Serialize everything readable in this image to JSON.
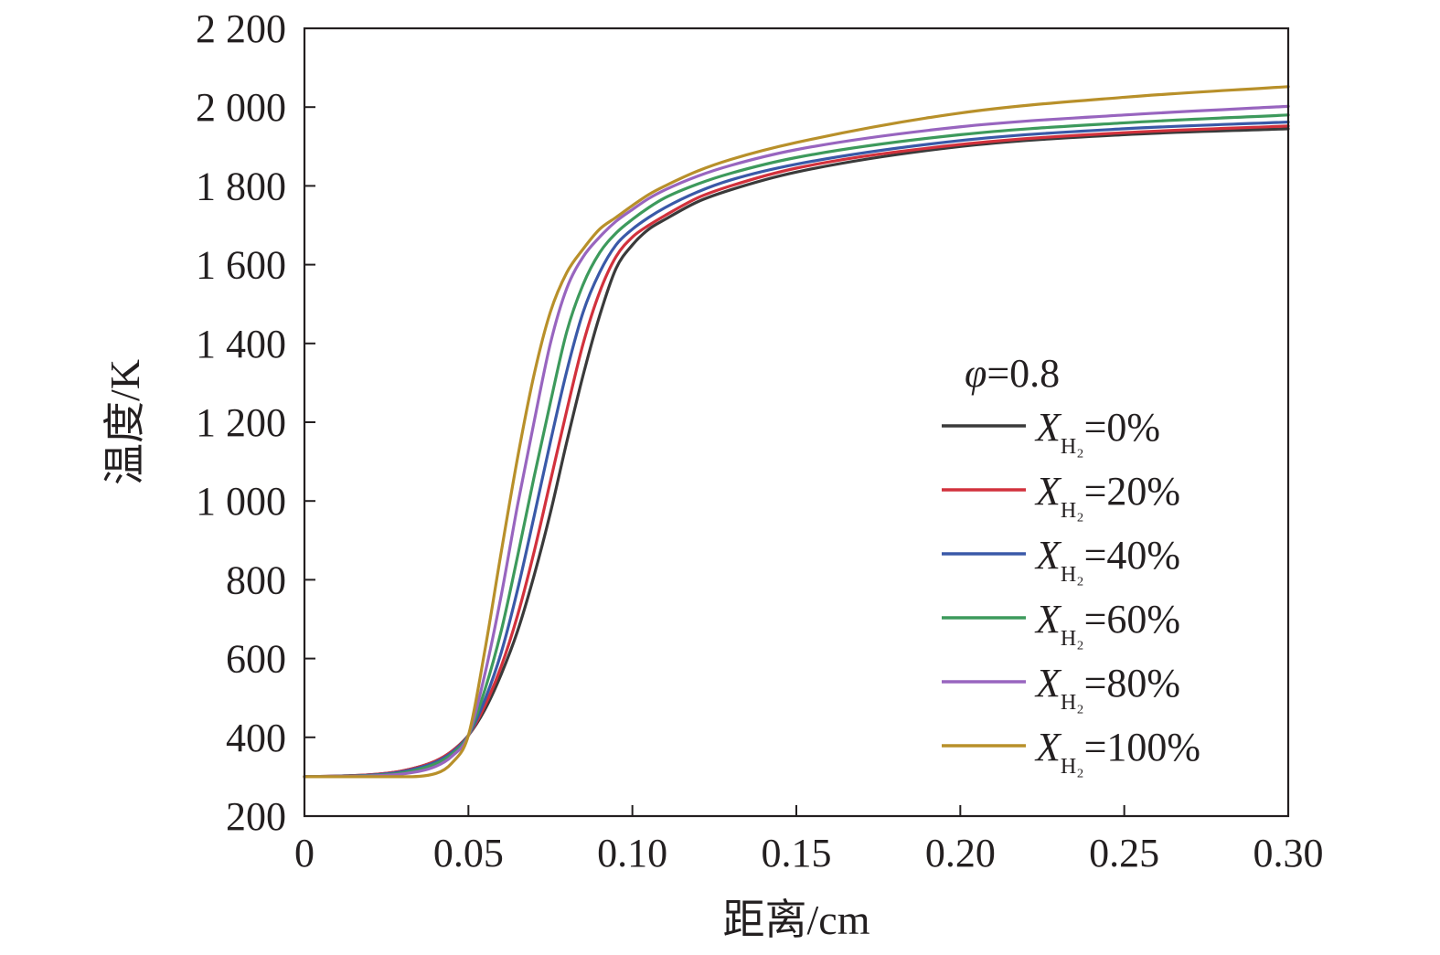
{
  "chart_data": {
    "type": "line",
    "xlabel": "距离/cm",
    "ylabel": "温度/K",
    "xlim": [
      0,
      0.3
    ],
    "ylim": [
      200,
      2200
    ],
    "x_ticks": [
      0,
      0.05,
      0.1,
      0.15,
      0.2,
      0.25,
      0.3
    ],
    "x_tick_labels": [
      "0",
      "0.05",
      "0.10",
      "0.15",
      "0.20",
      "0.25",
      "0.30"
    ],
    "y_ticks": [
      200,
      400,
      600,
      800,
      1000,
      1200,
      1400,
      1600,
      1800,
      2000,
      2200
    ],
    "y_tick_labels": [
      "200",
      "400",
      "600",
      "800",
      "1 000",
      "1 200",
      "1 400",
      "1 600",
      "1 800",
      "2 000",
      "2 200"
    ],
    "grid": false,
    "legend_position": "right",
    "legend_title": {
      "symbol": "φ",
      "text": "=0.8"
    },
    "legend_symbol": "X",
    "legend_subscript": "H₂",
    "x": [
      0,
      0.02,
      0.03,
      0.04,
      0.045,
      0.05,
      0.055,
      0.06,
      0.065,
      0.07,
      0.075,
      0.08,
      0.085,
      0.09,
      0.095,
      0.1,
      0.105,
      0.11,
      0.12,
      0.13,
      0.15,
      0.2,
      0.25,
      0.3
    ],
    "series": [
      {
        "name": "=0%",
        "color": "#3a3a3a",
        "values": [
          300,
          305,
          315,
          340,
          365,
          405,
          470,
          560,
          670,
          810,
          970,
          1150,
          1320,
          1470,
          1590,
          1650,
          1690,
          1715,
          1760,
          1790,
          1835,
          1900,
          1930,
          1945
        ]
      },
      {
        "name": "=20%",
        "color": "#d2313c",
        "values": [
          300,
          305,
          315,
          340,
          365,
          405,
          480,
          580,
          710,
          870,
          1050,
          1230,
          1400,
          1530,
          1620,
          1670,
          1700,
          1725,
          1770,
          1800,
          1845,
          1905,
          1935,
          1952
        ]
      },
      {
        "name": "=40%",
        "color": "#3a59a8",
        "values": [
          300,
          304,
          313,
          337,
          362,
          405,
          495,
          615,
          775,
          960,
          1150,
          1330,
          1480,
          1580,
          1650,
          1690,
          1720,
          1745,
          1785,
          1815,
          1855,
          1915,
          1945,
          1962
        ]
      },
      {
        "name": "=60%",
        "color": "#3d9a5c",
        "values": [
          300,
          303,
          310,
          333,
          358,
          405,
          520,
          670,
          860,
          1060,
          1250,
          1430,
          1550,
          1630,
          1680,
          1715,
          1745,
          1770,
          1805,
          1832,
          1872,
          1930,
          1960,
          1980
        ]
      },
      {
        "name": "=80%",
        "color": "#9865bf",
        "values": [
          300,
          302,
          307,
          326,
          352,
          405,
          560,
          760,
          990,
          1200,
          1400,
          1540,
          1620,
          1670,
          1710,
          1740,
          1768,
          1790,
          1825,
          1852,
          1892,
          1950,
          1980,
          2002
        ]
      },
      {
        "name": "=100%",
        "color": "#b8902a",
        "values": [
          300,
          300,
          300,
          308,
          335,
          405,
          620,
          870,
          1110,
          1320,
          1480,
          1580,
          1640,
          1690,
          1720,
          1750,
          1778,
          1800,
          1838,
          1867,
          1910,
          1985,
          2025,
          2052
        ]
      }
    ]
  }
}
